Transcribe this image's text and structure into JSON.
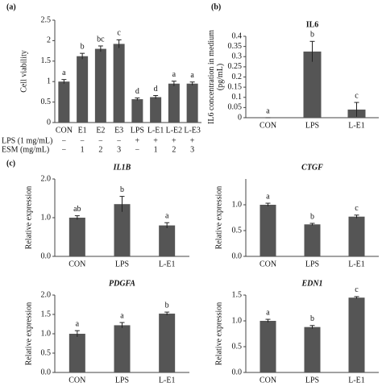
{
  "chart_data": [
    {
      "type": "bar",
      "panel": "(a)",
      "ylabel": [
        "Cell viability"
      ],
      "categories": [
        "CON",
        "E1",
        "E2",
        "E3",
        "LPS",
        "L-E1",
        "L-E2",
        "L-E3"
      ],
      "values": [
        1.0,
        1.62,
        1.8,
        1.92,
        0.57,
        0.62,
        0.95,
        0.95
      ],
      "errors": [
        0.05,
        0.07,
        0.07,
        0.1,
        0.03,
        0.04,
        0.06,
        0.04
      ],
      "letters": [
        "a",
        "b",
        "bc",
        "c",
        "d",
        "d",
        "a",
        "a"
      ],
      "rows": [
        {
          "label": "LPS (1 mg/mL)",
          "cells": [
            "−",
            "−",
            "−",
            "−",
            "+",
            "+",
            "+",
            "+"
          ]
        },
        {
          "label": "ESM (mg/mL)",
          "cells": [
            "−",
            "1",
            "2",
            "3",
            "−",
            "1",
            "2",
            "3"
          ]
        }
      ],
      "ylim": [
        0,
        2.5
      ],
      "yticks": [
        0,
        0.5,
        1,
        1.5,
        2,
        2.5
      ],
      "color": "#555555"
    },
    {
      "type": "bar",
      "panel": "(b)",
      "title": "IL6",
      "ylabel": [
        "IL6 concentration in medium",
        "(pg/mL)"
      ],
      "categories": [
        "CON",
        "LPS",
        "L-E1"
      ],
      "values": [
        0,
        0.325,
        0.04
      ],
      "errors": [
        0,
        0.05,
        0.035
      ],
      "letters": [
        "a",
        "b",
        "c"
      ],
      "ylim": [
        0,
        0.4
      ],
      "yticks": [
        0,
        0.05,
        0.1,
        0.15,
        0.2,
        0.25,
        0.3,
        0.35,
        0.4
      ],
      "color": "#555555"
    },
    {
      "type": "bar",
      "panel": "(c)",
      "title": "IL1B",
      "ylabel": [
        "Relative expression"
      ],
      "categories": [
        "CON",
        "LPS",
        "L-E1"
      ],
      "values": [
        1.0,
        1.35,
        0.8
      ],
      "errors": [
        0.05,
        0.2,
        0.07
      ],
      "letters": [
        "ab",
        "b",
        "a"
      ],
      "ylim": [
        0,
        2
      ],
      "yticks": [
        {
          "value": 0,
          "label": "0.0"
        },
        {
          "value": 1,
          "label": "1.0"
        },
        {
          "value": 2,
          "label": "2.0"
        }
      ],
      "color": "#555555"
    },
    {
      "type": "bar",
      "title": "CTGF",
      "ylabel": [
        "Relative expression"
      ],
      "categories": [
        "CON",
        "LPS",
        "L-E1"
      ],
      "values": [
        1.0,
        0.62,
        0.77
      ],
      "errors": [
        0.03,
        0.02,
        0.03
      ],
      "letters": [
        "a",
        "b",
        "c"
      ],
      "ylim": [
        0,
        1.5
      ],
      "yticks": [
        {
          "value": 0,
          "label": "0.0"
        },
        {
          "value": 0.5,
          "label": "0.5"
        },
        {
          "value": 1,
          "label": "1.0"
        }
      ],
      "color": "#555555"
    },
    {
      "type": "bar",
      "title": "PDGFA",
      "ylabel": [
        "Relative expression"
      ],
      "categories": [
        "CON",
        "LPS",
        "L-E1"
      ],
      "values": [
        1.0,
        1.22,
        1.52
      ],
      "errors": [
        0.08,
        0.07,
        0.04
      ],
      "letters": [
        "a",
        "a",
        "b"
      ],
      "ylim": [
        0,
        2
      ],
      "yticks": [
        {
          "value": 0,
          "label": "0.0"
        },
        {
          "value": 0.5,
          "label": "0.5"
        },
        {
          "value": 1,
          "label": "1.0"
        },
        {
          "value": 1.5,
          "label": "1.5"
        },
        {
          "value": 2,
          "label": "2.0"
        }
      ],
      "color": "#555555"
    },
    {
      "type": "bar",
      "title": "EDN1",
      "ylabel": [
        "Relative expression"
      ],
      "categories": [
        "CON",
        "LPS",
        "L-E1"
      ],
      "values": [
        1.0,
        0.88,
        1.45
      ],
      "errors": [
        0.03,
        0.03,
        0.02
      ],
      "letters": [
        "a",
        "b",
        "c"
      ],
      "ylim": [
        0,
        1.5
      ],
      "yticks": [
        {
          "value": 0,
          "label": "0.0"
        },
        {
          "value": 0.5,
          "label": "0.5"
        },
        {
          "value": 1,
          "label": "1.0"
        },
        {
          "value": 1.5,
          "label": "1.5"
        }
      ],
      "color": "#555555"
    }
  ]
}
